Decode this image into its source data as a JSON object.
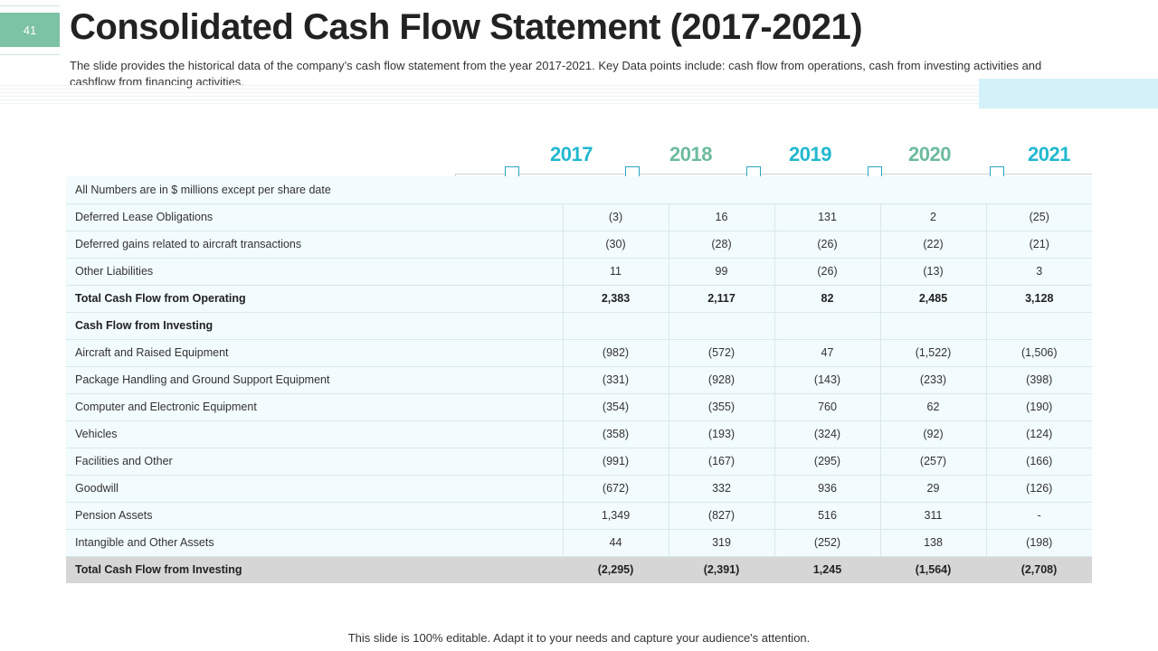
{
  "slide": {
    "page_number": "41",
    "title": "Consolidated Cash Flow Statement (2017-2021)",
    "subtitle": "The slide provides the historical data of the company’s cash flow statement from the year 2017-2021. Key Data points include: cash flow from operations, cash from investing activities and cashflow from financing activities.",
    "footer": "This slide is 100% editable. Adapt it to your needs and capture your audience's attention."
  },
  "colors": {
    "accent_teal": "#22b8cf",
    "accent_green": "#6dbb9d",
    "page_badge": "#7cc2a5"
  },
  "years": [
    "2017",
    "2018",
    "2019",
    "2020",
    "2021"
  ],
  "table": {
    "note": "All Numbers are in $ millions except per share date",
    "rows": [
      {
        "label": "Deferred Lease Obligations",
        "values": [
          "(3)",
          "16",
          "131",
          "2",
          "(25)"
        ]
      },
      {
        "label": "Deferred gains related to aircraft transactions",
        "values": [
          "(30)",
          "(28)",
          "(26)",
          "(22)",
          "(21)"
        ]
      },
      {
        "label": "Other Liabilities",
        "values": [
          "11",
          "99",
          "(26)",
          "(13)",
          "3"
        ]
      },
      {
        "label": "Total  Cash Flow from Operating",
        "values": [
          "2,383",
          "2,117",
          "82",
          "2,485",
          "3,128"
        ]
      },
      {
        "label": "Cash Flow from Investing",
        "values": [
          "",
          "",
          "",
          "",
          ""
        ]
      },
      {
        "label": "Aircraft and Raised Equipment",
        "values": [
          "(982)",
          "(572)",
          "47",
          "(1,522)",
          "(1,506)"
        ]
      },
      {
        "label": "Package Handling and Ground Support Equipment",
        "values": [
          "(331)",
          "(928)",
          "(143)",
          "(233)",
          "(398)"
        ]
      },
      {
        "label": "Computer and Electronic Equipment",
        "values": [
          "(354)",
          "(355)",
          "760",
          "62",
          "(190)"
        ]
      },
      {
        "label": "Vehicles",
        "values": [
          "(358)",
          "(193)",
          "(324)",
          "(92)",
          "(124)"
        ]
      },
      {
        "label": "Facilities and Other",
        "values": [
          "(991)",
          "(167)",
          "(295)",
          "(257)",
          "(166)"
        ]
      },
      {
        "label": "Goodwill",
        "values": [
          "(672)",
          "332",
          "936",
          "29",
          "(126)"
        ]
      },
      {
        "label": "Pension Assets",
        "values": [
          "1,349",
          "(827)",
          "516",
          "311",
          "-"
        ]
      },
      {
        "label": "Intangible and Other Assets",
        "values": [
          "44",
          "319",
          "(252)",
          "138",
          "(198)"
        ]
      },
      {
        "label": "Total Cash Flow from Investing",
        "values": [
          "(2,295)",
          "(2,391)",
          "1,245",
          "(1,564)",
          "(2,708)"
        ]
      }
    ]
  }
}
